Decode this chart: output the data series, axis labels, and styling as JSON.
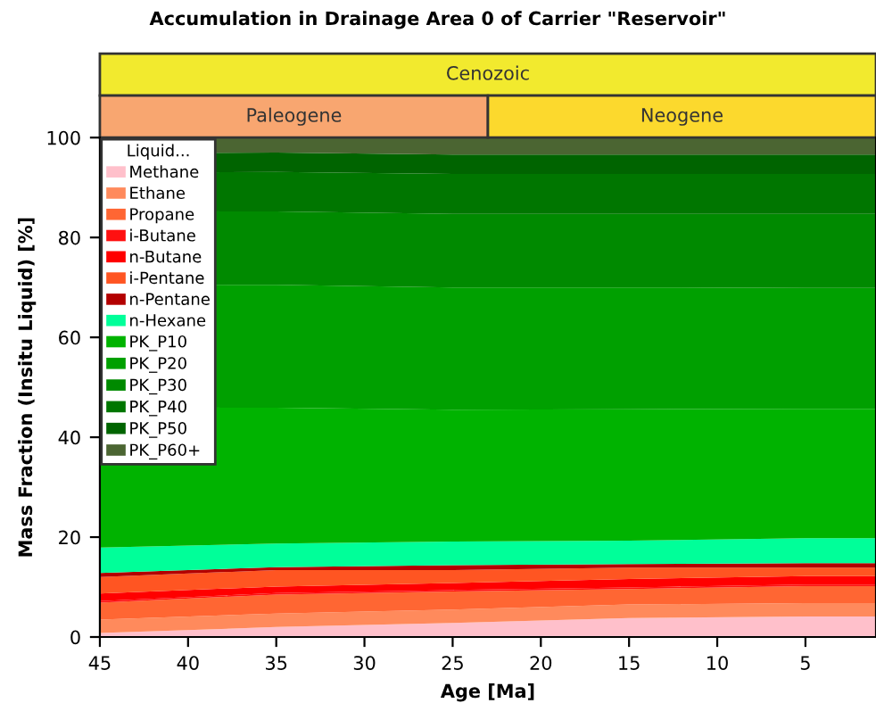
{
  "chart_data": {
    "type": "area",
    "stacked": true,
    "title": "Accumulation in Drainage Area 0 of Carrier \"Reservoir\"",
    "xlabel": "Age [Ma]",
    "ylabel": "Mass Fraction (Insitu Liquid) [%]",
    "legend_title": "Liquid...",
    "legend": "top left",
    "grid": false,
    "x": [
      45,
      35,
      25,
      15,
      5,
      1
    ],
    "xlim": [
      45,
      1
    ],
    "xticks": [
      45,
      40,
      35,
      30,
      25,
      20,
      15,
      10,
      5
    ],
    "ylim": [
      0,
      100
    ],
    "yticks": [
      0,
      20,
      40,
      60,
      80,
      100
    ],
    "annotations": [
      "Cenozoic",
      "Paleogene",
      "Neogene"
    ],
    "series": [
      {
        "name": "Methane",
        "color": "#ffc0cb",
        "values": [
          0.8,
          2.0,
          2.8,
          3.8,
          4.1,
          4.1
        ]
      },
      {
        "name": "Ethane",
        "color": "#ff8a5c",
        "values": [
          2.7,
          2.7,
          2.7,
          2.7,
          2.7,
          2.7
        ]
      },
      {
        "name": "Propane",
        "color": "#ff6633",
        "values": [
          3.4,
          3.8,
          3.6,
          3.1,
          3.4,
          3.4
        ]
      },
      {
        "name": "i-Butane",
        "color": "#ff1010",
        "values": [
          0.3,
          0.3,
          0.3,
          0.3,
          0.3,
          0.3
        ]
      },
      {
        "name": "n-Butane",
        "color": "#ff0000",
        "values": [
          1.5,
          1.3,
          1.4,
          1.7,
          1.7,
          1.7
        ]
      },
      {
        "name": "i-Pentane",
        "color": "#ff5522",
        "values": [
          3.3,
          3.3,
          2.6,
          2.3,
          1.7,
          1.7
        ]
      },
      {
        "name": "n-Pentane",
        "color": "#b30000",
        "values": [
          0.8,
          0.6,
          1.0,
          0.7,
          0.9,
          0.9
        ]
      },
      {
        "name": "n-Hexane",
        "color": "#00ff99",
        "values": [
          5.1,
          4.7,
          4.7,
          4.7,
          5.0,
          5.0
        ]
      },
      {
        "name": "PK_P10",
        "color": "#00b300",
        "values": [
          28.1,
          27.2,
          26.4,
          26.3,
          25.9,
          25.9
        ]
      },
      {
        "name": "PK_P20",
        "color": "#00a000",
        "values": [
          24.6,
          24.6,
          24.5,
          24.4,
          24.2,
          24.2
        ]
      },
      {
        "name": "PK_P30",
        "color": "#008a00",
        "values": [
          14.7,
          14.7,
          14.7,
          14.7,
          14.8,
          14.8
        ]
      },
      {
        "name": "PK_P40",
        "color": "#007600",
        "values": [
          7.7,
          7.9,
          8.0,
          8.0,
          8.0,
          8.0
        ]
      },
      {
        "name": "PK_P50",
        "color": "#006400",
        "values": [
          3.9,
          3.9,
          3.9,
          3.9,
          3.9,
          3.9
        ]
      },
      {
        "name": "PK_P60+",
        "color": "#4b6532",
        "values": [
          3.1,
          3.0,
          3.4,
          3.4,
          3.4,
          3.4
        ]
      }
    ]
  }
}
